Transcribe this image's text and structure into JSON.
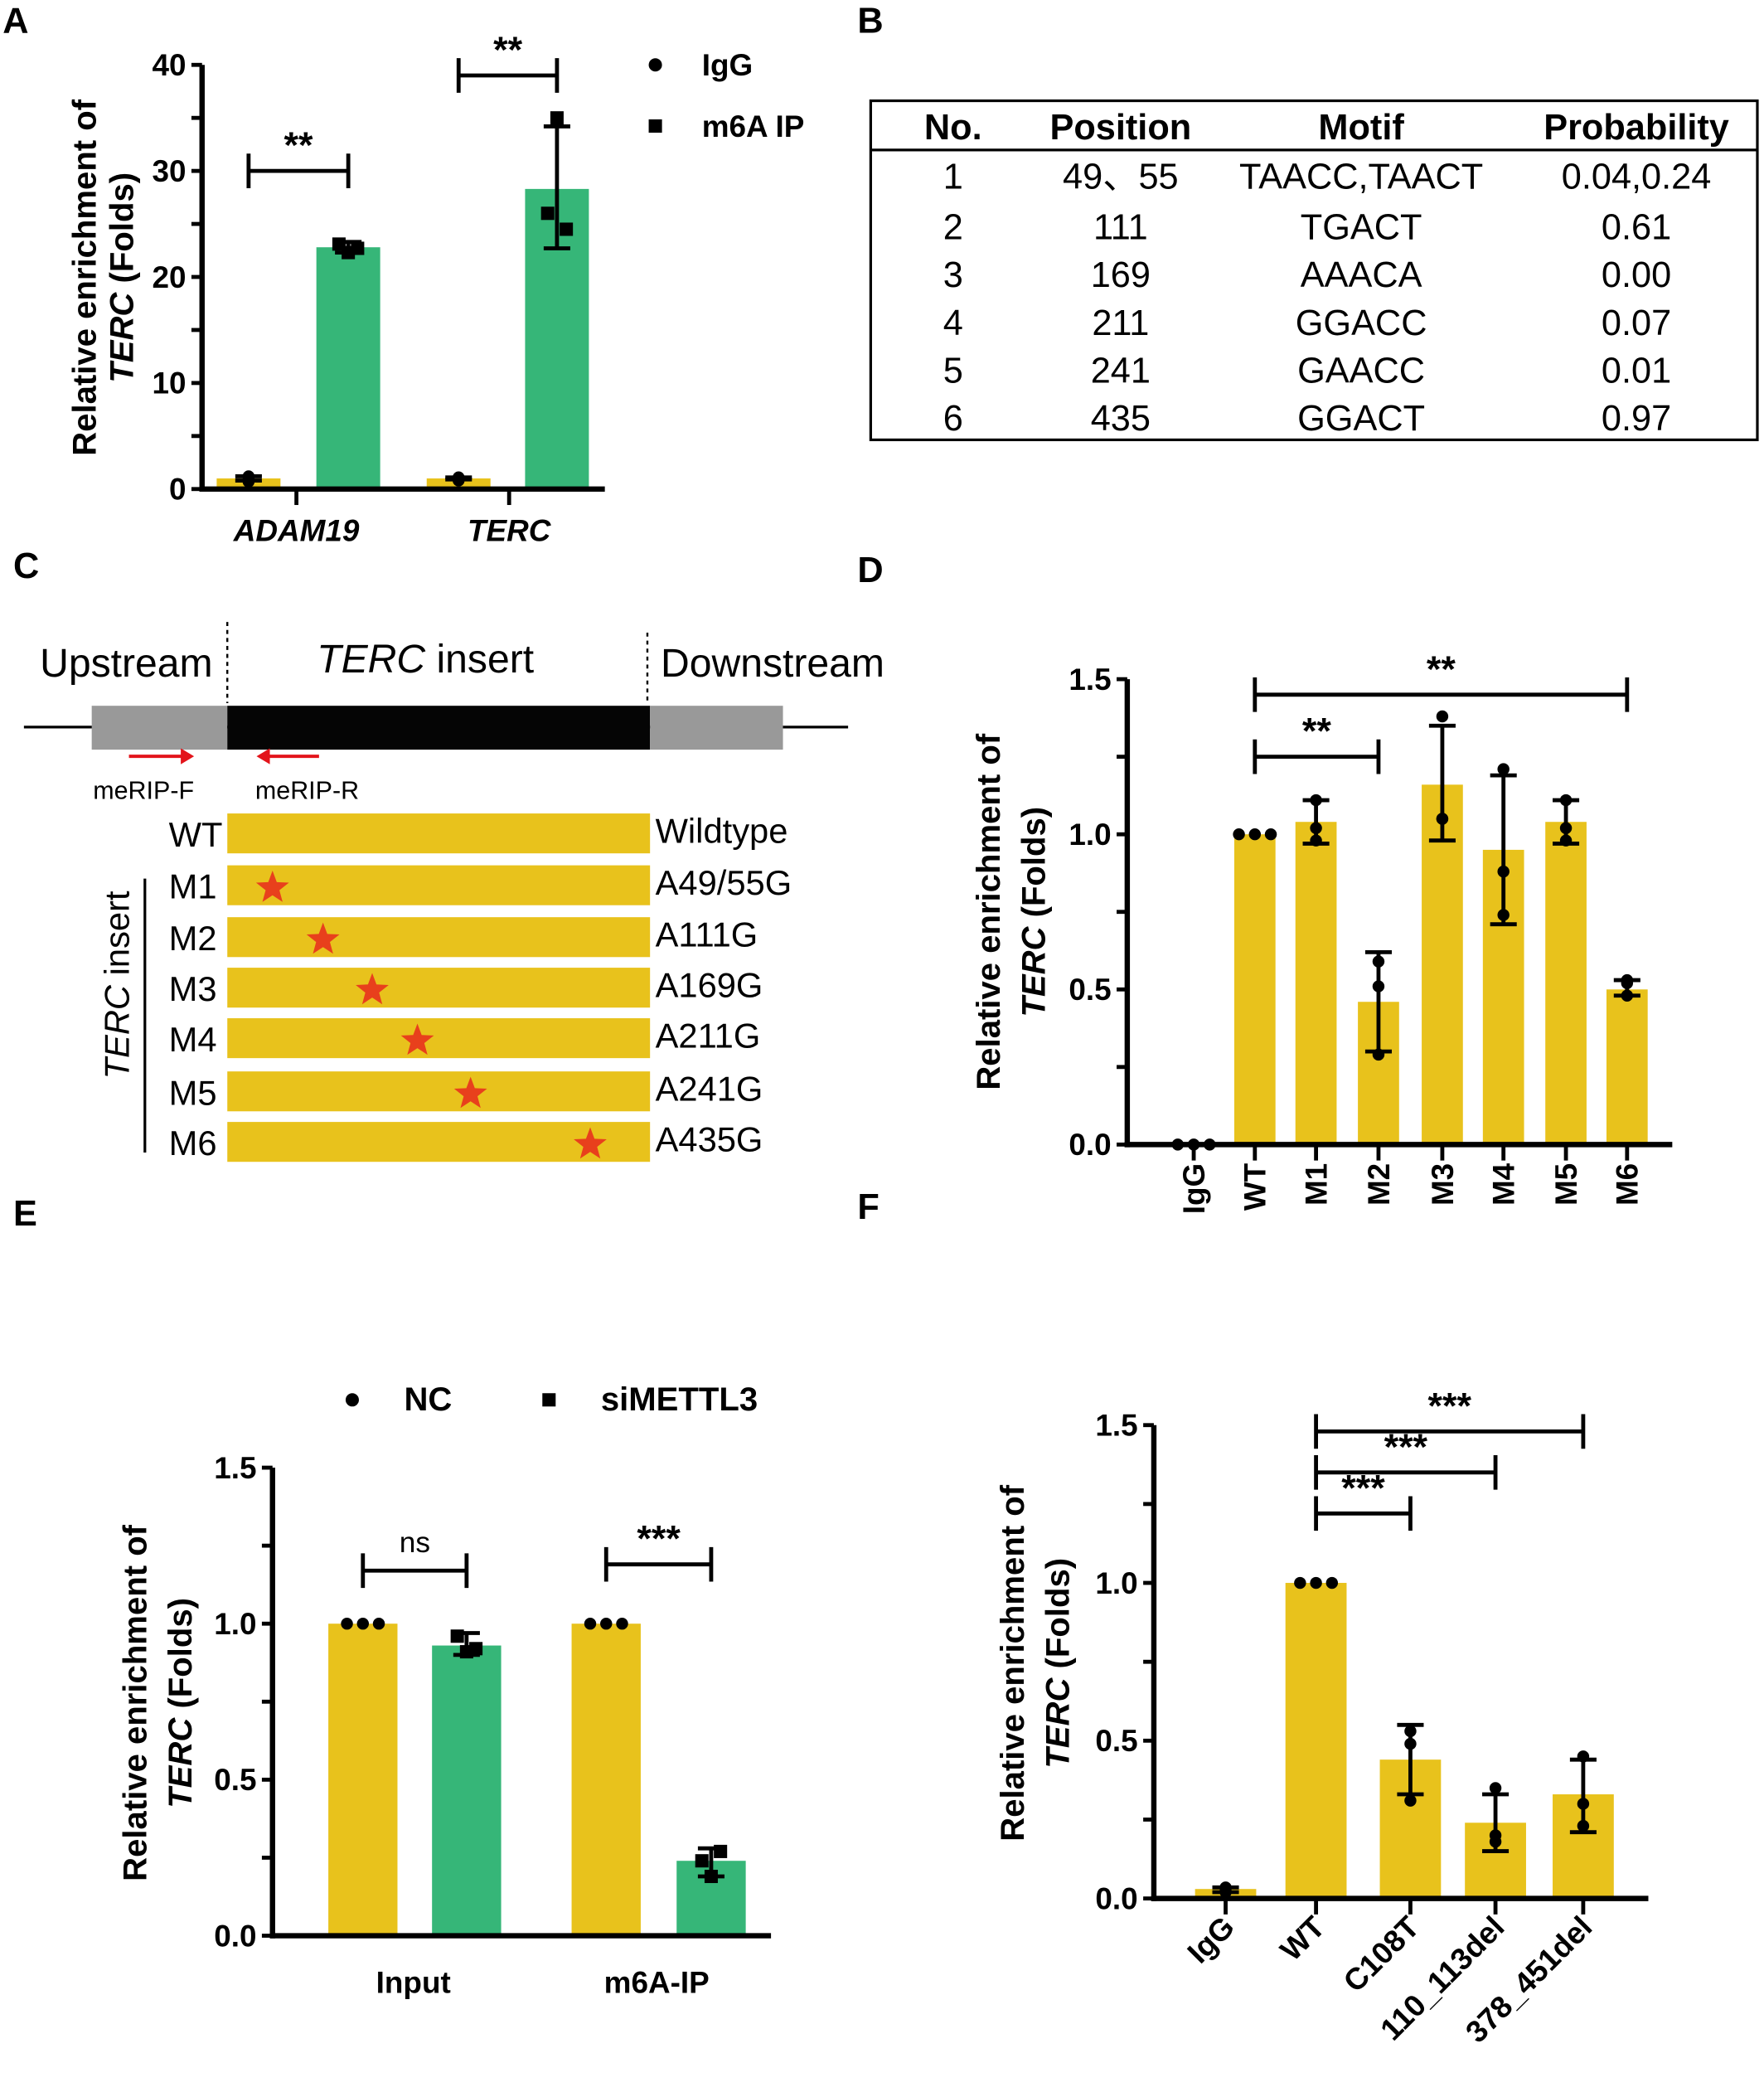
{
  "panel_labels": {
    "A": "A",
    "B": "B",
    "C": "C",
    "D": "D",
    "E": "E",
    "F": "F"
  },
  "colors": {
    "yellow": "#E8C21C",
    "green": "#36B678",
    "star": "#E8401C",
    "arrow": "#E3141B",
    "gray": "#999999",
    "black": "#050505"
  },
  "table": {
    "headers": [
      "No.",
      "Position",
      "Motif",
      "Probability"
    ],
    "rows": [
      [
        "1",
        "49、55",
        "TAACC,TAACT",
        "0.04,0.24"
      ],
      [
        "2",
        "111",
        "TGACT",
        "0.61"
      ],
      [
        "3",
        "169",
        "AAACA",
        "0.00"
      ],
      [
        "4",
        "211",
        "GGACC",
        "0.07"
      ],
      [
        "5",
        "241",
        "GAACC",
        "0.01"
      ],
      [
        "6",
        "435",
        "GGACT",
        "0.97"
      ]
    ]
  },
  "diagram": {
    "upstream": "Upstream",
    "insert_italic": "TERC",
    "insert_rest": " insert",
    "downstream": "Downstream",
    "primer_f": "meRIP-F",
    "primer_r": "meRIP-R",
    "side_label_italic": "TERC",
    "side_label_rest": " insert",
    "constructs": [
      {
        "name": "WT",
        "mutation": "Wildtype",
        "star": false
      },
      {
        "name": "M1",
        "mutation": "A49/55G",
        "star": true
      },
      {
        "name": "M2",
        "mutation": "A111G",
        "star": true
      },
      {
        "name": "M3",
        "mutation": "A169G",
        "star": true
      },
      {
        "name": "M4",
        "mutation": "A211G",
        "star": true
      },
      {
        "name": "M5",
        "mutation": "A241G",
        "star": true
      },
      {
        "name": "M6",
        "mutation": "A435G",
        "star": true
      }
    ]
  },
  "chart_data": [
    {
      "panel": "A",
      "type": "bar",
      "ylabel": {
        "line1": "Relative enrichment of",
        "italic": "TERC",
        "rest": " (Folds)"
      },
      "categories": [
        "ADAM19",
        "TERC"
      ],
      "categories_italic": true,
      "ylim": [
        0,
        40
      ],
      "yticks": [
        "0",
        "10",
        "20",
        "30",
        "40"
      ],
      "ytick_values": [
        0,
        10,
        20,
        30,
        40
      ],
      "minor_step": 5,
      "legend": "top-right",
      "series": [
        {
          "name": "IgG",
          "marker": "circle",
          "color": "#E8C21C",
          "values": [
            1.0,
            1.0
          ],
          "errors": [
            [
              0.8,
              1.2
            ],
            [
              0.9,
              1.1
            ]
          ],
          "points": [
            [
              0.7,
              1.2,
              0.9
            ],
            [
              0.8,
              1.0,
              1.1
            ]
          ]
        },
        {
          "name": "m6A IP",
          "marker": "square",
          "color": "#36B678",
          "values": [
            22.8,
            28.3
          ],
          "errors": [
            [
              22.3,
              23.3
            ],
            [
              22.7,
              34.2
            ]
          ],
          "points": [
            [
              22.3,
              23.1,
              22.7
            ],
            [
              35.0,
              26.0,
              24.5
            ]
          ]
        }
      ],
      "significance": [
        {
          "from": [
            0,
            0
          ],
          "to": [
            0,
            1
          ],
          "y": 30,
          "label": "**"
        },
        {
          "from": [
            1,
            0
          ],
          "to": [
            1,
            1
          ],
          "y": 39,
          "label": "**"
        }
      ]
    },
    {
      "panel": "D",
      "type": "bar",
      "ylabel": {
        "line1": "Relative enrichment of",
        "italic": "TERC",
        "rest": " (Folds)"
      },
      "categories": [
        "IgG",
        "WT",
        "M1",
        "M2",
        "M3",
        "M4",
        "M5",
        "M6"
      ],
      "ylim": [
        0,
        1.5
      ],
      "yticks": [
        "0.0",
        "0.5",
        "1.0",
        "1.5"
      ],
      "ytick_values": [
        0,
        0.5,
        1.0,
        1.5
      ],
      "minor_step": 0.25,
      "series": [
        {
          "marker": "circle",
          "color": "#E8C21C",
          "values": [
            0.0,
            1.0,
            1.04,
            0.46,
            1.16,
            0.95,
            1.04,
            0.5
          ],
          "errors": [
            null,
            null,
            [
              0.97,
              1.11
            ],
            [
              0.3,
              0.62
            ],
            [
              0.98,
              1.35
            ],
            [
              0.71,
              1.19
            ],
            [
              0.97,
              1.11
            ],
            [
              0.48,
              0.53
            ]
          ],
          "points": [
            [
              0,
              0,
              0
            ],
            [
              1,
              1,
              1
            ],
            [
              1.11,
              1.02,
              0.98
            ],
            [
              0.59,
              0.51,
              0.29
            ],
            [
              1.05,
              1.38,
              1.05
            ],
            [
              1.21,
              0.88,
              0.74
            ],
            [
              1.11,
              1.02,
              0.98
            ],
            [
              0.53,
              0.52,
              0.48
            ]
          ]
        }
      ],
      "significance": [
        {
          "from": [
            1,
            0
          ],
          "to": [
            3,
            0
          ],
          "y": 1.25,
          "label": "**"
        },
        {
          "from": [
            1,
            0
          ],
          "to": [
            7,
            0
          ],
          "y": 1.45,
          "label": "**"
        }
      ]
    },
    {
      "panel": "E",
      "type": "bar",
      "ylabel": {
        "line1": "Relative enrichment of",
        "italic": "TERC",
        "rest": " (Folds)"
      },
      "categories": [
        "Input",
        "m6A-IP"
      ],
      "ylim": [
        0,
        1.5
      ],
      "yticks": [
        "0.0",
        "0.5",
        "1.0",
        "1.5"
      ],
      "ytick_values": [
        0,
        0.5,
        1.0,
        1.5
      ],
      "minor_step": 0.25,
      "legend": "top",
      "series": [
        {
          "name": "NC",
          "marker": "circle",
          "color": "#E8C21C",
          "values": [
            1.0,
            1.0
          ],
          "errors": [
            null,
            null
          ],
          "points": [
            [
              1,
              1,
              1
            ],
            [
              1,
              1,
              1
            ]
          ]
        },
        {
          "name": "siMETTL3",
          "marker": "square",
          "color": "#36B678",
          "values": [
            0.93,
            0.24
          ],
          "errors": [
            [
              0.9,
              0.97
            ],
            [
              0.19,
              0.28
            ]
          ],
          "points": [
            [
              0.91,
              0.96,
              0.92
            ],
            [
              0.19,
              0.24,
              0.27
            ]
          ]
        }
      ],
      "significance": [
        {
          "from": [
            0,
            0
          ],
          "to": [
            0,
            1
          ],
          "y": 1.17,
          "label": "ns"
        },
        {
          "from": [
            1,
            0
          ],
          "to": [
            1,
            1
          ],
          "y": 1.19,
          "label": "***"
        }
      ]
    },
    {
      "panel": "F",
      "type": "bar",
      "ylabel": {
        "line1": "Relative enrichment of",
        "italic": "TERC",
        "rest": " (Folds)"
      },
      "categories": [
        "IgG",
        "WT",
        "C108T",
        "110_113del",
        "378_451del"
      ],
      "ylim": [
        0,
        1.5
      ],
      "yticks": [
        "0.0",
        "0.5",
        "1.0",
        "1.5"
      ],
      "ytick_values": [
        0,
        0.5,
        1.0,
        1.5
      ],
      "minor_step": 0.25,
      "series": [
        {
          "marker": "circle",
          "color": "#E8C21C",
          "values": [
            0.03,
            1.0,
            0.44,
            0.24,
            0.33
          ],
          "errors": [
            [
              0.02,
              0.035
            ],
            null,
            [
              0.33,
              0.55
            ],
            [
              0.15,
              0.33
            ],
            [
              0.21,
              0.44
            ]
          ],
          "points": [
            [
              0.02,
              0.035,
              0.025
            ],
            [
              1,
              1,
              1
            ],
            [
              0.53,
              0.49,
              0.31
            ],
            [
              0.18,
              0.35,
              0.2
            ],
            [
              0.45,
              0.3,
              0.23
            ]
          ]
        }
      ],
      "significance": [
        {
          "from": [
            1,
            0
          ],
          "to": [
            2,
            0
          ],
          "y": 1.22,
          "label": "***"
        },
        {
          "from": [
            1,
            0
          ],
          "to": [
            3,
            0
          ],
          "y": 1.35,
          "label": "***"
        },
        {
          "from": [
            1,
            0
          ],
          "to": [
            4,
            0
          ],
          "y": 1.48,
          "label": "***"
        }
      ]
    }
  ]
}
